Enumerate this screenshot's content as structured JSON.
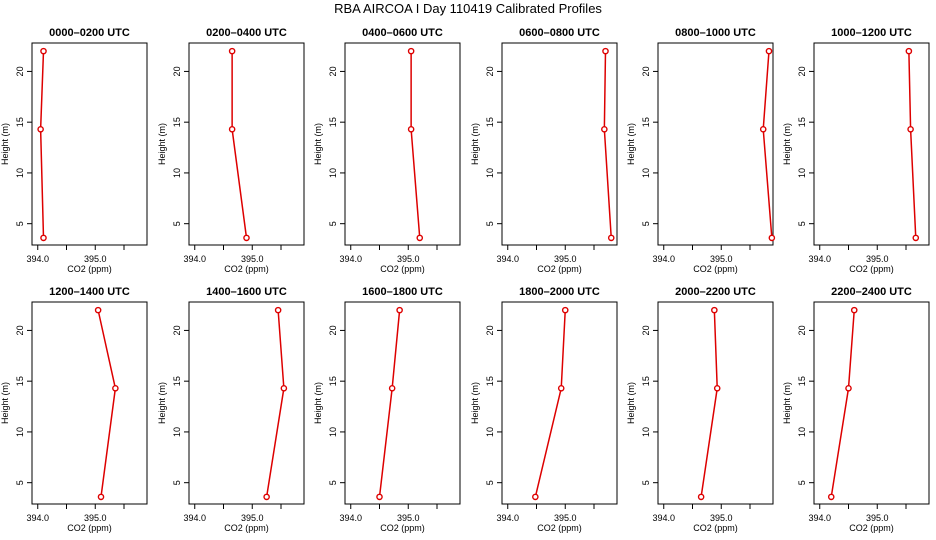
{
  "title": "RBA AIRCOA I  Day 110419  Calibrated Profiles",
  "chart_data": [
    {
      "type": "line",
      "title": "0000–0200 UTC",
      "xlabel": "CO2 (ppm)",
      "ylabel": "Height (m)",
      "xlim": [
        393.9,
        395.9
      ],
      "ylim": [
        2.9,
        22.8
      ],
      "xticks": [
        "394.0",
        "395.0"
      ],
      "yticks": [
        "5",
        "10",
        "15",
        "20"
      ],
      "color": "#dd0000",
      "x": [
        394.1,
        394.05,
        394.1
      ],
      "y": [
        22,
        14.3,
        3.6
      ]
    },
    {
      "type": "line",
      "title": "0200–0400 UTC",
      "xlabel": "CO2 (ppm)",
      "ylabel": "Height (m)",
      "xlim": [
        393.9,
        395.9
      ],
      "ylim": [
        2.9,
        22.8
      ],
      "xticks": [
        "394.0",
        "395.0"
      ],
      "yticks": [
        "5",
        "10",
        "15",
        "20"
      ],
      "color": "#dd0000",
      "x": [
        394.65,
        394.65,
        394.9
      ],
      "y": [
        22,
        14.3,
        3.6
      ]
    },
    {
      "type": "line",
      "title": "0400–0600 UTC",
      "xlabel": "CO2 (ppm)",
      "ylabel": "Height (m)",
      "xlim": [
        393.9,
        395.9
      ],
      "ylim": [
        2.9,
        22.8
      ],
      "xticks": [
        "394.0",
        "395.0"
      ],
      "yticks": [
        "5",
        "10",
        "15",
        "20"
      ],
      "color": "#dd0000",
      "x": [
        395.05,
        395.05,
        395.2
      ],
      "y": [
        22,
        14.3,
        3.6
      ]
    },
    {
      "type": "line",
      "title": "0600–0800 UTC",
      "xlabel": "CO2 (ppm)",
      "ylabel": "Height (m)",
      "xlim": [
        393.9,
        395.9
      ],
      "ylim": [
        2.9,
        22.8
      ],
      "xticks": [
        "394.0",
        "395.0"
      ],
      "yticks": [
        "5",
        "10",
        "15",
        "20"
      ],
      "color": "#dd0000",
      "x": [
        395.7,
        395.68,
        395.8
      ],
      "y": [
        22,
        14.3,
        3.6
      ]
    },
    {
      "type": "line",
      "title": "0800–1000 UTC",
      "xlabel": "CO2 (ppm)",
      "ylabel": "Height (m)",
      "xlim": [
        393.9,
        395.9
      ],
      "ylim": [
        2.9,
        22.8
      ],
      "xticks": [
        "394.0",
        "395.0"
      ],
      "yticks": [
        "5",
        "10",
        "15",
        "20"
      ],
      "color": "#dd0000",
      "x": [
        395.83,
        395.73,
        395.88
      ],
      "y": [
        22,
        14.3,
        3.6
      ]
    },
    {
      "type": "line",
      "title": "1000–1200 UTC",
      "xlabel": "CO2 (ppm)",
      "ylabel": "Height (m)",
      "xlim": [
        393.9,
        395.9
      ],
      "ylim": [
        2.9,
        22.8
      ],
      "xticks": [
        "394.0",
        "395.0"
      ],
      "yticks": [
        "5",
        "10",
        "15",
        "20"
      ],
      "color": "#dd0000",
      "x": [
        395.55,
        395.58,
        395.67
      ],
      "y": [
        22,
        14.3,
        3.6
      ]
    },
    {
      "type": "line",
      "title": "1200–1400 UTC",
      "xlabel": "CO2 (ppm)",
      "ylabel": "Height (m)",
      "xlim": [
        393.9,
        395.9
      ],
      "ylim": [
        2.9,
        22.8
      ],
      "xticks": [
        "394.0",
        "395.0"
      ],
      "yticks": [
        "5",
        "10",
        "15",
        "20"
      ],
      "color": "#dd0000",
      "x": [
        395.05,
        395.35,
        395.1
      ],
      "y": [
        22,
        14.3,
        3.6
      ]
    },
    {
      "type": "line",
      "title": "1400–1600 UTC",
      "xlabel": "CO2 (ppm)",
      "ylabel": "Height (m)",
      "xlim": [
        393.9,
        395.9
      ],
      "ylim": [
        2.9,
        22.8
      ],
      "xticks": [
        "394.0",
        "395.0"
      ],
      "yticks": [
        "5",
        "10",
        "15",
        "20"
      ],
      "color": "#dd0000",
      "x": [
        395.45,
        395.55,
        395.25
      ],
      "y": [
        22,
        14.3,
        3.6
      ]
    },
    {
      "type": "line",
      "title": "1600–1800 UTC",
      "xlabel": "CO2 (ppm)",
      "ylabel": "Height (m)",
      "xlim": [
        393.9,
        395.9
      ],
      "ylim": [
        2.9,
        22.8
      ],
      "xticks": [
        "394.0",
        "395.0"
      ],
      "yticks": [
        "5",
        "10",
        "15",
        "20"
      ],
      "color": "#dd0000",
      "x": [
        394.85,
        394.72,
        394.5
      ],
      "y": [
        22,
        14.3,
        3.6
      ]
    },
    {
      "type": "line",
      "title": "1800–2000 UTC",
      "xlabel": "CO2 (ppm)",
      "ylabel": "Height (m)",
      "xlim": [
        393.9,
        395.9
      ],
      "ylim": [
        2.9,
        22.8
      ],
      "xticks": [
        "394.0",
        "395.0"
      ],
      "yticks": [
        "5",
        "10",
        "15",
        "20"
      ],
      "color": "#dd0000",
      "x": [
        395.0,
        394.93,
        394.48
      ],
      "y": [
        22,
        14.3,
        3.6
      ]
    },
    {
      "type": "line",
      "title": "2000–2200 UTC",
      "xlabel": "CO2 (ppm)",
      "ylabel": "Height (m)",
      "xlim": [
        393.9,
        395.9
      ],
      "ylim": [
        2.9,
        22.8
      ],
      "xticks": [
        "394.0",
        "395.0"
      ],
      "yticks": [
        "5",
        "10",
        "15",
        "20"
      ],
      "color": "#dd0000",
      "x": [
        394.88,
        394.93,
        394.65
      ],
      "y": [
        22,
        14.3,
        3.6
      ]
    },
    {
      "type": "line",
      "title": "2200–2400 UTC",
      "xlabel": "CO2 (ppm)",
      "ylabel": "Height (m)",
      "xlim": [
        393.9,
        395.9
      ],
      "ylim": [
        2.9,
        22.8
      ],
      "xticks": [
        "394.0",
        "395.0"
      ],
      "yticks": [
        "5",
        "10",
        "15",
        "20"
      ],
      "color": "#dd0000",
      "x": [
        394.6,
        394.5,
        394.2
      ],
      "y": [
        22,
        14.3,
        3.6
      ]
    }
  ]
}
